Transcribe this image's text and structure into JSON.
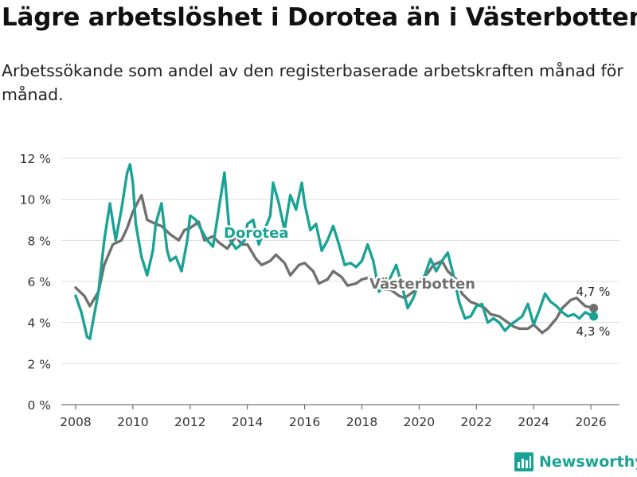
{
  "header": {
    "title": "Lägre arbetslöshet i Dorotea än i Västerbotten",
    "subtitle": "Arbetssökande som andel av den registerbaserade arbetskraften månad för månad."
  },
  "brand": {
    "name": "Newsworthy",
    "icon": "bar-chart-icon",
    "color": "#1aa395"
  },
  "chart_data": {
    "type": "line",
    "title": "Lägre arbetslöshet i Dorotea än i Västerbotten",
    "xlabel": "",
    "ylabel": "",
    "xlim": [
      2007.5,
      2027.0
    ],
    "ylim": [
      0,
      12
    ],
    "grid": true,
    "y_ticks": [
      0,
      2,
      4,
      6,
      8,
      10,
      12
    ],
    "y_tick_labels": [
      "0 %",
      "2 %",
      "4 %",
      "6 %",
      "8 %",
      "10 %",
      "12 %"
    ],
    "x_ticks": [
      2008,
      2010,
      2012,
      2014,
      2016,
      2018,
      2020,
      2022,
      2024,
      2026
    ],
    "x_tick_labels": [
      "2008",
      "2010",
      "2012",
      "2014",
      "2016",
      "2018",
      "2020",
      "2022",
      "2024",
      "2026"
    ],
    "series": [
      {
        "name": "Västerbotten",
        "color": "#707070",
        "end_label": "4,7 %",
        "x": [
          2008.0,
          2008.3,
          2008.5,
          2008.8,
          2009.0,
          2009.3,
          2009.6,
          2009.8,
          2010.0,
          2010.3,
          2010.5,
          2010.8,
          2011.0,
          2011.3,
          2011.6,
          2011.8,
          2012.0,
          2012.3,
          2012.5,
          2012.8,
          2013.0,
          2013.3,
          2013.6,
          2013.8,
          2014.0,
          2014.3,
          2014.5,
          2014.8,
          2015.0,
          2015.3,
          2015.5,
          2015.8,
          2016.0,
          2016.3,
          2016.5,
          2016.8,
          2017.0,
          2017.3,
          2017.5,
          2017.8,
          2018.0,
          2018.3,
          2018.5,
          2018.8,
          2019.0,
          2019.3,
          2019.5,
          2019.8,
          2020.0,
          2020.3,
          2020.5,
          2020.8,
          2021.0,
          2021.3,
          2021.5,
          2021.8,
          2022.0,
          2022.3,
          2022.5,
          2022.8,
          2023.0,
          2023.3,
          2023.5,
          2023.8,
          2024.0,
          2024.3,
          2024.5,
          2024.8,
          2025.0,
          2025.3,
          2025.5,
          2025.8,
          2026.1
        ],
        "values": [
          5.7,
          5.3,
          4.8,
          5.5,
          6.8,
          7.8,
          8.0,
          8.6,
          9.4,
          10.2,
          9.0,
          8.8,
          8.7,
          8.3,
          8.0,
          8.5,
          8.6,
          8.9,
          8.0,
          8.2,
          7.9,
          7.6,
          8.2,
          7.8,
          7.8,
          7.1,
          6.8,
          7.0,
          7.3,
          6.9,
          6.3,
          6.8,
          6.9,
          6.5,
          5.9,
          6.1,
          6.5,
          6.2,
          5.8,
          5.9,
          6.1,
          6.2,
          5.7,
          5.6,
          5.6,
          5.3,
          5.2,
          5.5,
          6.0,
          6.4,
          6.8,
          7.0,
          6.5,
          6.1,
          5.4,
          5.0,
          4.9,
          4.7,
          4.4,
          4.3,
          4.1,
          3.8,
          3.7,
          3.7,
          3.9,
          3.5,
          3.7,
          4.2,
          4.7,
          5.1,
          5.2,
          4.8,
          4.7
        ]
      },
      {
        "name": "Dorotea",
        "color": "#1aa395",
        "end_label": "4,3 %",
        "x": [
          2008.0,
          2008.2,
          2008.4,
          2008.5,
          2008.6,
          2008.8,
          2009.0,
          2009.2,
          2009.4,
          2009.6,
          2009.8,
          2009.9,
          2010.0,
          2010.1,
          2010.3,
          2010.5,
          2010.7,
          2010.8,
          2011.0,
          2011.2,
          2011.3,
          2011.5,
          2011.7,
          2011.9,
          2012.0,
          2012.2,
          2012.4,
          2012.6,
          2012.8,
          2013.0,
          2013.2,
          2013.4,
          2013.6,
          2013.7,
          2013.9,
          2014.0,
          2014.2,
          2014.4,
          2014.6,
          2014.8,
          2014.9,
          2015.1,
          2015.3,
          2015.5,
          2015.7,
          2015.9,
          2016.0,
          2016.2,
          2016.4,
          2016.6,
          2016.8,
          2017.0,
          2017.2,
          2017.4,
          2017.6,
          2017.8,
          2018.0,
          2018.2,
          2018.4,
          2018.6,
          2018.8,
          2019.0,
          2019.2,
          2019.4,
          2019.6,
          2019.8,
          2020.0,
          2020.2,
          2020.4,
          2020.6,
          2020.8,
          2021.0,
          2021.2,
          2021.4,
          2021.6,
          2021.8,
          2022.0,
          2022.2,
          2022.4,
          2022.6,
          2022.8,
          2023.0,
          2023.2,
          2023.4,
          2023.6,
          2023.8,
          2024.0,
          2024.2,
          2024.4,
          2024.6,
          2024.8,
          2025.0,
          2025.2,
          2025.4,
          2025.6,
          2025.8,
          2026.1
        ],
        "values": [
          5.3,
          4.5,
          3.3,
          3.2,
          4.0,
          5.5,
          8.0,
          9.8,
          8.0,
          9.5,
          11.3,
          11.7,
          10.8,
          8.8,
          7.2,
          6.3,
          7.5,
          8.8,
          9.8,
          7.5,
          7.0,
          7.2,
          6.5,
          8.0,
          9.2,
          9.0,
          8.5,
          8.0,
          7.7,
          9.5,
          11.3,
          8.0,
          7.6,
          7.7,
          8.0,
          8.8,
          9.0,
          7.8,
          8.5,
          9.2,
          10.8,
          9.8,
          8.5,
          10.2,
          9.5,
          10.8,
          9.8,
          8.5,
          8.8,
          7.5,
          8.0,
          8.7,
          7.8,
          6.8,
          6.9,
          6.7,
          7.0,
          7.8,
          7.0,
          5.5,
          5.8,
          6.2,
          6.8,
          5.8,
          4.7,
          5.2,
          6.0,
          6.3,
          7.1,
          6.5,
          7.0,
          7.4,
          6.3,
          5.0,
          4.2,
          4.3,
          4.8,
          4.9,
          4.0,
          4.2,
          4.0,
          3.6,
          3.9,
          4.1,
          4.3,
          4.9,
          3.9,
          4.6,
          5.4,
          5.0,
          4.8,
          4.5,
          4.3,
          4.4,
          4.2,
          4.5,
          4.3
        ]
      }
    ]
  }
}
